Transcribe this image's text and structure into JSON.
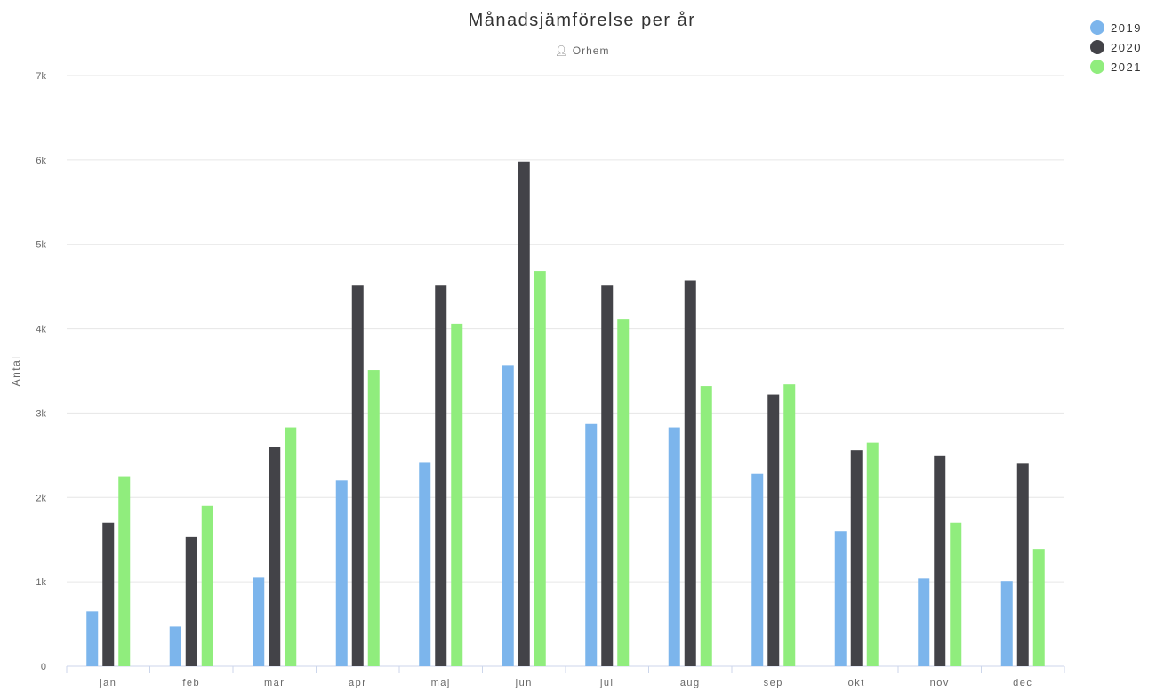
{
  "chart_data": {
    "type": "bar",
    "title": "Månadsjämförelse per år",
    "subtitle": "Orhem",
    "ylabel": "Antal",
    "xlabel": "",
    "ylim": [
      0,
      7000
    ],
    "yticks": [
      0,
      1000,
      2000,
      3000,
      4000,
      5000,
      6000,
      7000
    ],
    "ytick_labels": [
      "0",
      "1k",
      "2k",
      "3k",
      "4k",
      "5k",
      "6k",
      "7k"
    ],
    "grid": true,
    "legend_position": "top-right",
    "categories": [
      "jan",
      "feb",
      "mar",
      "apr",
      "maj",
      "jun",
      "jul",
      "aug",
      "sep",
      "okt",
      "nov",
      "dec"
    ],
    "series": [
      {
        "name": "2019",
        "color": "#7cb5ec",
        "values": [
          650,
          470,
          1050,
          2200,
          2420,
          3570,
          2870,
          2830,
          2280,
          1600,
          1040,
          1010
        ]
      },
      {
        "name": "2020",
        "color": "#434348",
        "values": [
          1700,
          1530,
          2600,
          4520,
          4520,
          5980,
          4520,
          4570,
          3220,
          2560,
          2490,
          2400
        ]
      },
      {
        "name": "2021",
        "color": "#90ed7d",
        "values": [
          2250,
          1900,
          2830,
          3510,
          4060,
          4680,
          4110,
          3320,
          3340,
          2650,
          1700,
          1390
        ]
      }
    ]
  },
  "icons": {
    "subtitle_icon": "person-icon"
  }
}
